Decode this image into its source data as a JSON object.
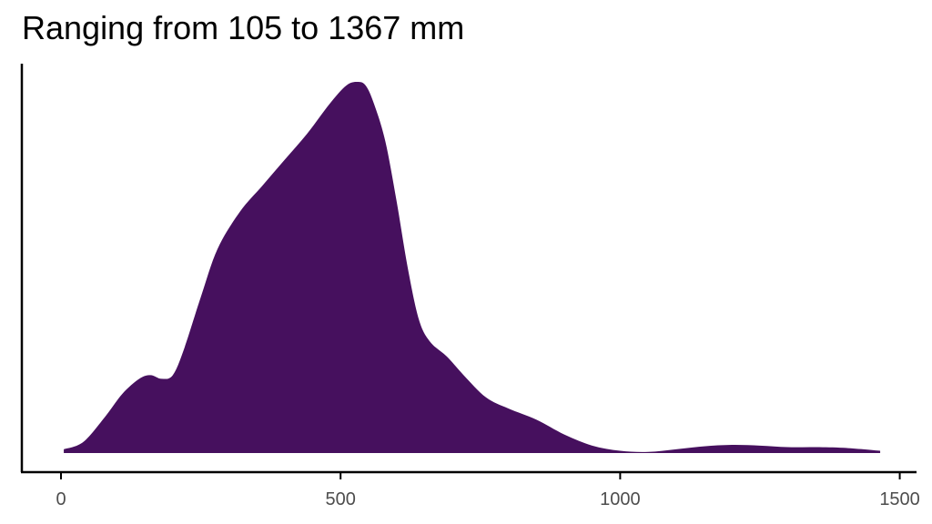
{
  "chart_data": {
    "type": "area",
    "title": "Ranging from 105 to 1367 mm",
    "xlabel": "",
    "ylabel": "",
    "xlim": [
      -70,
      1530
    ],
    "ylim": [
      0,
      1.05
    ],
    "x_ticks": [
      0,
      500,
      1000,
      1500
    ],
    "x_tick_labels": [
      "0",
      "500",
      "1000",
      "1500"
    ],
    "y_ticks_visible": false,
    "grid": false,
    "fill_color": "#46105E",
    "series": [
      {
        "x": [
          5,
          40,
          80,
          110,
          140,
          160,
          180,
          200,
          220,
          250,
          280,
          320,
          360,
          400,
          440,
          480,
          510,
          530,
          545,
          560,
          580,
          600,
          620,
          640,
          660,
          690,
          720,
          760,
          800,
          850,
          900,
          950,
          1000,
          1050,
          1100,
          1150,
          1200,
          1250,
          1300,
          1350,
          1400,
          1465
        ],
        "y": [
          0.01,
          0.03,
          0.1,
          0.16,
          0.2,
          0.21,
          0.2,
          0.21,
          0.28,
          0.42,
          0.55,
          0.65,
          0.72,
          0.79,
          0.86,
          0.94,
          0.99,
          1.0,
          0.99,
          0.94,
          0.84,
          0.68,
          0.5,
          0.36,
          0.3,
          0.26,
          0.21,
          0.15,
          0.12,
          0.09,
          0.05,
          0.02,
          0.006,
          0.003,
          0.01,
          0.018,
          0.022,
          0.02,
          0.016,
          0.016,
          0.014,
          0.006
        ]
      }
    ]
  }
}
